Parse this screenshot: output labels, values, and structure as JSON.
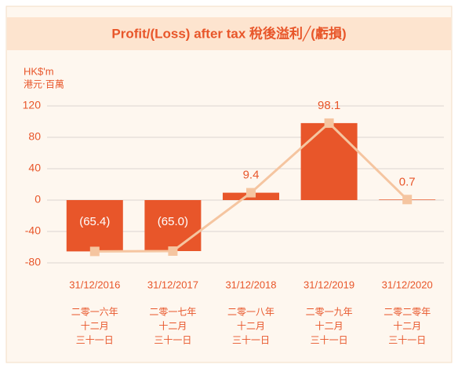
{
  "chart_data": {
    "type": "bar",
    "title": "Profit/(Loss) after tax 稅後溢利╱(虧損)",
    "y_label": "HK$'m",
    "y_label_zh": "港元‧百萬",
    "categories": [
      "31/12/2016",
      "31/12/2017",
      "31/12/2018",
      "31/12/2019",
      "31/12/2020"
    ],
    "categories_zh": [
      [
        "二零一六年",
        "十二月",
        "三十一日"
      ],
      [
        "二零一七年",
        "十二月",
        "三十一日"
      ],
      [
        "二零一八年",
        "十二月",
        "三十一日"
      ],
      [
        "二零一九年",
        "十二月",
        "三十一日"
      ],
      [
        "二零二零年",
        "十二月",
        "三十一日"
      ]
    ],
    "values": [
      -65.4,
      -65.0,
      9.4,
      98.1,
      0.7
    ],
    "value_labels": [
      "(65.4)",
      "(65.0)",
      "9.4",
      "98.1",
      "0.7"
    ],
    "color": "#e8562a",
    "line_color": "#f5c5a0",
    "ylim": [
      -80,
      120
    ],
    "yticks": [
      -80,
      -40,
      0,
      40,
      80,
      120
    ],
    "grid": true
  }
}
